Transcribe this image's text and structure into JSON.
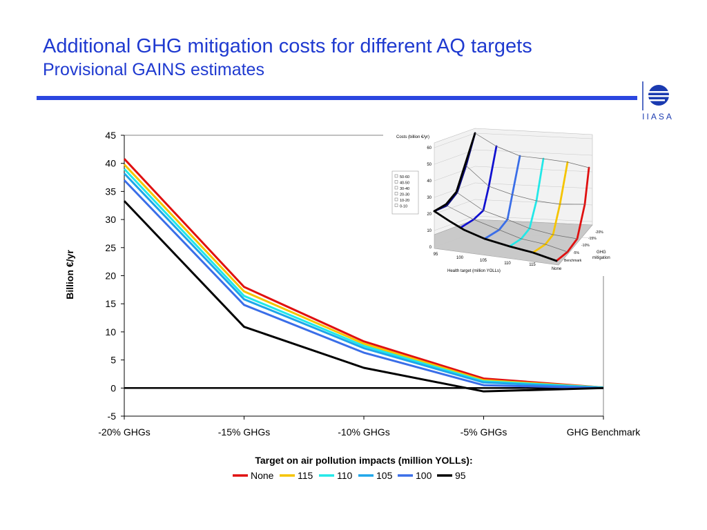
{
  "slide": {
    "title": "Additional GHG mitigation costs for different AQ targets",
    "subtitle": "Provisional GAINS estimates",
    "logo_text": "IIASA"
  },
  "chart_data": [
    {
      "type": "line",
      "categories": [
        "-20% GHGs",
        "-15% GHGs",
        "-10% GHGs",
        "-5% GHGs",
        "GHG Benchmark"
      ],
      "ylabel": "Billion €/yr",
      "xlabel": "",
      "ylim": [
        -5,
        45
      ],
      "yticks": [
        -5,
        0,
        5,
        10,
        15,
        20,
        25,
        30,
        35,
        40,
        45
      ],
      "legend_title": "Target on air pollution impacts (million YOLLs):",
      "legend_position": "bottom",
      "grid": false,
      "series": [
        {
          "name": "None",
          "color": "#e01010",
          "values": [
            40.8,
            18.0,
            8.3,
            1.7,
            0.1
          ]
        },
        {
          "name": "115",
          "color": "#f5c400",
          "values": [
            39.8,
            17.2,
            7.9,
            1.4,
            0.1
          ]
        },
        {
          "name": "110",
          "color": "#22e8e8",
          "values": [
            39.0,
            16.4,
            7.5,
            1.2,
            0.1
          ]
        },
        {
          "name": "105",
          "color": "#1ea6ea",
          "values": [
            38.2,
            15.8,
            7.1,
            1.0,
            0.0
          ]
        },
        {
          "name": "100",
          "color": "#3a6ee8",
          "values": [
            37.0,
            14.8,
            6.3,
            0.5,
            0.0
          ]
        },
        {
          "name": "95",
          "color": "#000000",
          "values": [
            33.3,
            10.9,
            3.6,
            -0.6,
            0.0
          ]
        }
      ]
    },
    {
      "type": "surface3d",
      "zlabel": "Costs (billion €/yr)",
      "xlabel": "Health target (million YOLLs)",
      "ylabel": "GHG mitigation",
      "zticks": [
        0,
        10,
        20,
        30,
        40,
        50,
        60
      ],
      "xticks": [
        "95",
        "100",
        "105",
        "110",
        "115",
        "None"
      ],
      "yticks": [
        "-20%",
        "-15%",
        "-10%",
        "-5%",
        "Benchmark"
      ],
      "legend": [
        "50-60",
        "40-50",
        "30-40",
        "20-30",
        "10-20",
        "0-10"
      ]
    }
  ]
}
